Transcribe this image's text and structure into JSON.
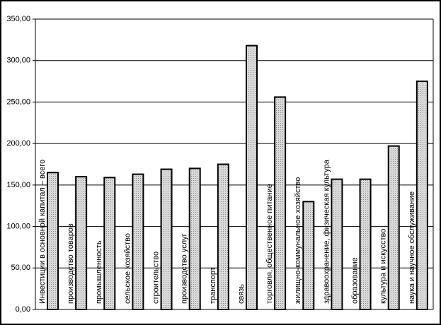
{
  "chart_data": {
    "type": "bar",
    "categories": [
      "Инвестиции в основной капитал – всего",
      "производство товаров",
      "промышленность",
      "сельское хозяйство",
      "строительство",
      "производство услуг",
      "транспорт",
      "связь",
      "торговля, общественное питание",
      "жилищно-коммунальное хозяйство",
      "здравоохранение, физическая культура",
      "образование",
      "культура и искусство",
      "наука и научное обслуживание"
    ],
    "values": [
      165,
      160,
      159,
      163,
      169,
      170,
      175,
      318,
      256,
      130,
      157,
      157,
      197,
      275
    ],
    "color": "#c8c8c8",
    "ylim": [
      0,
      350
    ],
    "yticks": [
      {
        "value": 0,
        "label": "0,00"
      },
      {
        "value": 50,
        "label": "50,00"
      },
      {
        "value": 100,
        "label": "100,00"
      },
      {
        "value": 150,
        "label": "150,00"
      },
      {
        "value": 200,
        "label": "200,00"
      },
      {
        "value": 250,
        "label": "250,00"
      },
      {
        "value": 300,
        "label": "300,00"
      },
      {
        "value": 350,
        "label": "350,00"
      }
    ],
    "grid": true
  }
}
